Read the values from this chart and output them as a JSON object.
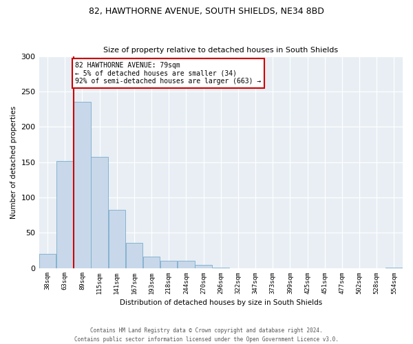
{
  "title": "82, HAWTHORNE AVENUE, SOUTH SHIELDS, NE34 8BD",
  "subtitle": "Size of property relative to detached houses in South Shields",
  "xlabel": "Distribution of detached houses by size in South Shields",
  "ylabel": "Number of detached properties",
  "bin_labels": [
    "38sqm",
    "63sqm",
    "89sqm",
    "115sqm",
    "141sqm",
    "167sqm",
    "193sqm",
    "218sqm",
    "244sqm",
    "270sqm",
    "296sqm",
    "322sqm",
    "347sqm",
    "373sqm",
    "399sqm",
    "425sqm",
    "451sqm",
    "477sqm",
    "502sqm",
    "528sqm",
    "554sqm"
  ],
  "bar_heights": [
    20,
    152,
    235,
    157,
    82,
    36,
    16,
    10,
    10,
    4,
    1,
    0,
    0,
    0,
    0,
    0,
    0,
    0,
    0,
    0,
    1
  ],
  "bar_color": "#c8d8ea",
  "bar_edge_color": "#7aabcc",
  "vline_color": "#cc0000",
  "vline_x": 1.5,
  "annotation_title": "82 HAWTHORNE AVENUE: 79sqm",
  "annotation_line1": "← 5% of detached houses are smaller (34)",
  "annotation_line2": "92% of semi-detached houses are larger (663) →",
  "annotation_box_edge_color": "#cc0000",
  "ylim": [
    0,
    300
  ],
  "yticks": [
    0,
    50,
    100,
    150,
    200,
    250,
    300
  ],
  "footer_line1": "Contains HM Land Registry data © Crown copyright and database right 2024.",
  "footer_line2": "Contains public sector information licensed under the Open Government Licence v3.0.",
  "axes_bg_color": "#e8eef4",
  "fig_bg_color": "#ffffff"
}
